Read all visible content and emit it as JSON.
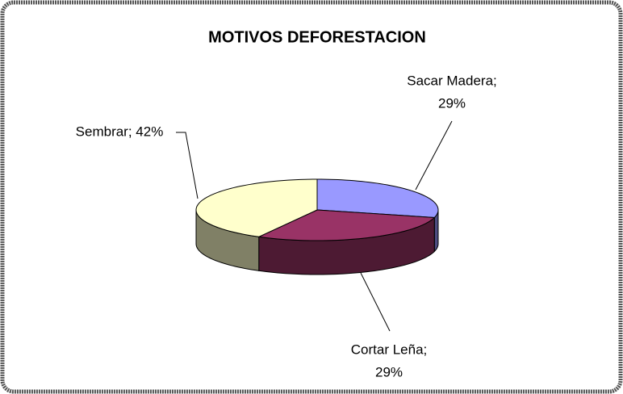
{
  "chart_data": {
    "type": "pie3d",
    "title": "MOTIVOS DEFORESTACION",
    "values": [
      29,
      29,
      42
    ],
    "labels": [
      [
        "Sacar Madera;",
        "29%"
      ],
      [
        "Cortar Leña;",
        "29%"
      ],
      [
        "Sembrar; 42%"
      ]
    ],
    "colors": [
      "#9999ff",
      "#993366",
      "#ffffcc"
    ],
    "side_colors": [
      "#4d4d80",
      "#4d1a33",
      "#808066"
    ]
  }
}
